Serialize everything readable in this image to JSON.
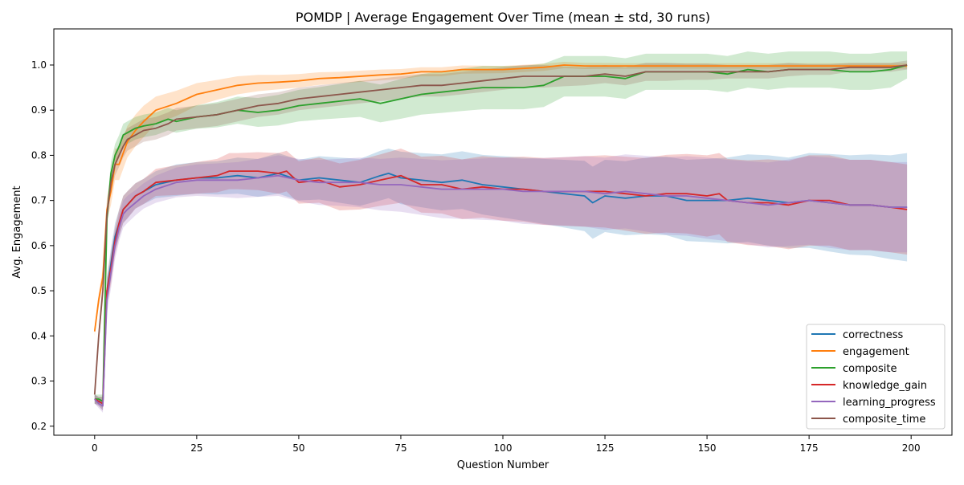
{
  "chart_data": {
    "type": "line",
    "title": "POMDP | Average Engagement Over Time (mean ± std, 30 runs)",
    "xlabel": "Question Number",
    "ylabel": "Avg. Engagement",
    "xlim": [
      -10,
      210
    ],
    "ylim": [
      0.18,
      1.08
    ],
    "xticks": [
      0,
      25,
      50,
      75,
      100,
      125,
      150,
      175,
      200
    ],
    "yticks": [
      0.2,
      0.3,
      0.4,
      0.5,
      0.6,
      0.7,
      0.8,
      0.9,
      1.0
    ],
    "xtick_labels": [
      "0",
      "25",
      "50",
      "75",
      "100",
      "125",
      "150",
      "175",
      "200"
    ],
    "ytick_labels": [
      "0.2",
      "0.3",
      "0.4",
      "0.5",
      "0.6",
      "0.7",
      "0.8",
      "0.9",
      "1.0"
    ],
    "grid": false,
    "legend_position": "lower-right",
    "band": "mean ± std",
    "series": [
      {
        "name": "correctness",
        "color": "#1f77b4",
        "x": [
          0,
          1,
          2,
          3,
          4,
          5,
          6,
          7,
          8,
          10,
          12,
          15,
          20,
          25,
          30,
          35,
          40,
          45,
          50,
          55,
          60,
          65,
          70,
          72,
          75,
          80,
          85,
          90,
          95,
          100,
          105,
          110,
          115,
          120,
          122,
          125,
          130,
          135,
          140,
          145,
          150,
          155,
          160,
          165,
          170,
          175,
          180,
          185,
          190,
          195,
          199
        ],
        "y": [
          0.26,
          0.255,
          0.25,
          0.5,
          0.56,
          0.62,
          0.65,
          0.68,
          0.69,
          0.71,
          0.72,
          0.735,
          0.745,
          0.75,
          0.75,
          0.755,
          0.75,
          0.76,
          0.745,
          0.75,
          0.745,
          0.74,
          0.755,
          0.76,
          0.75,
          0.745,
          0.74,
          0.745,
          0.735,
          0.73,
          0.725,
          0.72,
          0.715,
          0.71,
          0.695,
          0.71,
          0.705,
          0.71,
          0.71,
          0.7,
          0.7,
          0.7,
          0.705,
          0.7,
          0.695,
          0.7,
          0.695,
          0.69,
          0.69,
          0.685,
          0.685
        ],
        "std": [
          0.01,
          0.01,
          0.015,
          0.03,
          0.035,
          0.03,
          0.03,
          0.03,
          0.03,
          0.028,
          0.028,
          0.03,
          0.035,
          0.035,
          0.037,
          0.04,
          0.042,
          0.045,
          0.045,
          0.048,
          0.05,
          0.052,
          0.055,
          0.055,
          0.058,
          0.06,
          0.062,
          0.064,
          0.066,
          0.068,
          0.07,
          0.072,
          0.075,
          0.078,
          0.08,
          0.08,
          0.082,
          0.085,
          0.087,
          0.09,
          0.092,
          0.095,
          0.097,
          0.1,
          0.1,
          0.105,
          0.108,
          0.11,
          0.112,
          0.115,
          0.12
        ]
      },
      {
        "name": "engagement",
        "color": "#ff7f0e",
        "x": [
          0,
          1,
          2,
          3,
          4,
          5,
          6,
          8,
          10,
          12,
          15,
          20,
          25,
          30,
          35,
          40,
          45,
          50,
          55,
          60,
          70,
          75,
          80,
          85,
          90,
          100,
          110,
          115,
          120,
          130,
          140,
          150,
          160,
          170,
          180,
          190,
          199
        ],
        "y": [
          0.41,
          0.48,
          0.53,
          0.68,
          0.72,
          0.78,
          0.78,
          0.83,
          0.855,
          0.875,
          0.9,
          0.915,
          0.935,
          0.945,
          0.955,
          0.96,
          0.962,
          0.965,
          0.97,
          0.972,
          0.978,
          0.98,
          0.985,
          0.985,
          0.99,
          0.99,
          0.995,
          1.0,
          0.998,
          0.998,
          0.998,
          0.998,
          0.998,
          0.998,
          0.998,
          0.998,
          0.998
        ],
        "std": [
          0.01,
          0.015,
          0.02,
          0.025,
          0.03,
          0.035,
          0.035,
          0.035,
          0.035,
          0.035,
          0.03,
          0.028,
          0.025,
          0.022,
          0.02,
          0.018,
          0.016,
          0.015,
          0.014,
          0.013,
          0.012,
          0.011,
          0.01,
          0.01,
          0.009,
          0.008,
          0.008,
          0.007,
          0.007,
          0.006,
          0.006,
          0.006,
          0.006,
          0.006,
          0.006,
          0.006,
          0.006
        ]
      },
      {
        "name": "composite",
        "color": "#2ca02c",
        "x": [
          0,
          1,
          2,
          3,
          4,
          5,
          6,
          7,
          8,
          10,
          12,
          15,
          18,
          20,
          25,
          30,
          35,
          40,
          45,
          50,
          55,
          60,
          65,
          70,
          75,
          80,
          85,
          90,
          95,
          100,
          105,
          110,
          115,
          120,
          125,
          130,
          135,
          140,
          145,
          150,
          155,
          160,
          165,
          170,
          175,
          180,
          185,
          190,
          195,
          199
        ],
        "y": [
          0.26,
          0.26,
          0.255,
          0.66,
          0.76,
          0.8,
          0.82,
          0.845,
          0.85,
          0.86,
          0.865,
          0.87,
          0.88,
          0.875,
          0.885,
          0.89,
          0.9,
          0.895,
          0.9,
          0.91,
          0.915,
          0.92,
          0.925,
          0.915,
          0.925,
          0.935,
          0.94,
          0.945,
          0.95,
          0.95,
          0.95,
          0.955,
          0.975,
          0.975,
          0.975,
          0.97,
          0.985,
          0.985,
          0.985,
          0.985,
          0.98,
          0.99,
          0.985,
          0.99,
          0.99,
          0.99,
          0.985,
          0.985,
          0.99,
          1.0
        ],
        "std": [
          0.01,
          0.01,
          0.015,
          0.025,
          0.025,
          0.025,
          0.025,
          0.025,
          0.025,
          0.025,
          0.025,
          0.025,
          0.025,
          0.025,
          0.026,
          0.028,
          0.03,
          0.032,
          0.034,
          0.035,
          0.036,
          0.038,
          0.04,
          0.042,
          0.044,
          0.045,
          0.046,
          0.047,
          0.048,
          0.048,
          0.048,
          0.048,
          0.045,
          0.045,
          0.045,
          0.045,
          0.04,
          0.04,
          0.04,
          0.04,
          0.04,
          0.04,
          0.04,
          0.04,
          0.04,
          0.04,
          0.04,
          0.04,
          0.04,
          0.03
        ]
      },
      {
        "name": "knowledge_gain",
        "color": "#d62728",
        "x": [
          0,
          1,
          2,
          3,
          4,
          5,
          6,
          7,
          8,
          10,
          12,
          15,
          20,
          25,
          30,
          33,
          35,
          40,
          45,
          47,
          50,
          55,
          60,
          65,
          70,
          75,
          80,
          85,
          90,
          95,
          100,
          105,
          110,
          115,
          120,
          125,
          130,
          135,
          140,
          145,
          150,
          153,
          155,
          160,
          165,
          170,
          175,
          180,
          185,
          190,
          195,
          199
        ],
        "y": [
          0.26,
          0.255,
          0.25,
          0.5,
          0.55,
          0.61,
          0.65,
          0.68,
          0.69,
          0.71,
          0.72,
          0.74,
          0.745,
          0.75,
          0.755,
          0.765,
          0.765,
          0.765,
          0.76,
          0.765,
          0.74,
          0.745,
          0.73,
          0.735,
          0.745,
          0.755,
          0.735,
          0.735,
          0.725,
          0.73,
          0.725,
          0.725,
          0.72,
          0.72,
          0.72,
          0.72,
          0.715,
          0.71,
          0.715,
          0.715,
          0.71,
          0.715,
          0.7,
          0.695,
          0.695,
          0.69,
          0.7,
          0.7,
          0.69,
          0.69,
          0.685,
          0.68
        ],
        "std": [
          0.01,
          0.01,
          0.015,
          0.03,
          0.035,
          0.03,
          0.03,
          0.03,
          0.03,
          0.028,
          0.028,
          0.03,
          0.033,
          0.035,
          0.037,
          0.04,
          0.04,
          0.042,
          0.045,
          0.045,
          0.047,
          0.05,
          0.052,
          0.055,
          0.057,
          0.06,
          0.062,
          0.064,
          0.066,
          0.068,
          0.07,
          0.072,
          0.074,
          0.076,
          0.078,
          0.08,
          0.082,
          0.084,
          0.086,
          0.088,
          0.09,
          0.09,
          0.092,
          0.094,
          0.096,
          0.098,
          0.1,
          0.1,
          0.1,
          0.1,
          0.1,
          0.1
        ]
      },
      {
        "name": "learning_progress",
        "color": "#9467bd",
        "x": [
          0,
          1,
          2,
          3,
          4,
          5,
          6,
          7,
          8,
          10,
          12,
          15,
          20,
          25,
          30,
          35,
          40,
          45,
          50,
          55,
          60,
          65,
          70,
          75,
          80,
          85,
          90,
          95,
          100,
          105,
          110,
          115,
          120,
          125,
          130,
          135,
          140,
          145,
          150,
          155,
          160,
          165,
          170,
          175,
          180,
          185,
          190,
          195,
          199
        ],
        "y": [
          0.26,
          0.25,
          0.245,
          0.48,
          0.54,
          0.6,
          0.64,
          0.67,
          0.68,
          0.695,
          0.71,
          0.725,
          0.74,
          0.745,
          0.745,
          0.745,
          0.75,
          0.755,
          0.745,
          0.74,
          0.74,
          0.74,
          0.735,
          0.735,
          0.73,
          0.725,
          0.725,
          0.725,
          0.725,
          0.72,
          0.72,
          0.72,
          0.72,
          0.715,
          0.72,
          0.715,
          0.71,
          0.71,
          0.705,
          0.7,
          0.695,
          0.69,
          0.695,
          0.7,
          0.695,
          0.69,
          0.69,
          0.685,
          0.685
        ],
        "std": [
          0.01,
          0.01,
          0.015,
          0.03,
          0.035,
          0.03,
          0.03,
          0.03,
          0.03,
          0.028,
          0.028,
          0.03,
          0.033,
          0.035,
          0.037,
          0.04,
          0.042,
          0.045,
          0.047,
          0.05,
          0.052,
          0.055,
          0.057,
          0.06,
          0.062,
          0.064,
          0.066,
          0.068,
          0.07,
          0.072,
          0.074,
          0.076,
          0.078,
          0.08,
          0.082,
          0.084,
          0.086,
          0.088,
          0.09,
          0.09,
          0.092,
          0.094,
          0.096,
          0.098,
          0.1,
          0.1,
          0.1,
          0.1,
          0.1
        ]
      },
      {
        "name": "composite_time",
        "color": "#8c564b",
        "x": [
          0,
          1,
          2,
          3,
          4,
          5,
          6,
          7,
          8,
          10,
          12,
          15,
          18,
          20,
          25,
          30,
          35,
          40,
          45,
          50,
          55,
          60,
          65,
          70,
          75,
          80,
          85,
          90,
          95,
          100,
          105,
          110,
          115,
          120,
          125,
          130,
          135,
          140,
          145,
          150,
          155,
          160,
          165,
          170,
          175,
          180,
          185,
          190,
          195,
          199
        ],
        "y": [
          0.27,
          0.4,
          0.5,
          0.67,
          0.74,
          0.78,
          0.8,
          0.82,
          0.835,
          0.845,
          0.855,
          0.86,
          0.87,
          0.88,
          0.885,
          0.89,
          0.9,
          0.91,
          0.915,
          0.925,
          0.93,
          0.935,
          0.94,
          0.945,
          0.95,
          0.955,
          0.955,
          0.96,
          0.965,
          0.97,
          0.975,
          0.975,
          0.975,
          0.975,
          0.98,
          0.975,
          0.985,
          0.985,
          0.985,
          0.985,
          0.985,
          0.985,
          0.985,
          0.99,
          0.99,
          0.99,
          0.995,
          0.995,
          0.995,
          1.0
        ],
        "std": [
          0.01,
          0.015,
          0.02,
          0.025,
          0.025,
          0.025,
          0.025,
          0.025,
          0.025,
          0.025,
          0.025,
          0.025,
          0.025,
          0.025,
          0.025,
          0.025,
          0.025,
          0.025,
          0.025,
          0.025,
          0.025,
          0.025,
          0.025,
          0.025,
          0.025,
          0.025,
          0.025,
          0.025,
          0.025,
          0.025,
          0.025,
          0.025,
          0.022,
          0.02,
          0.02,
          0.02,
          0.02,
          0.02,
          0.018,
          0.018,
          0.015,
          0.015,
          0.015,
          0.015,
          0.012,
          0.012,
          0.01,
          0.01,
          0.01,
          0.01
        ]
      }
    ]
  }
}
